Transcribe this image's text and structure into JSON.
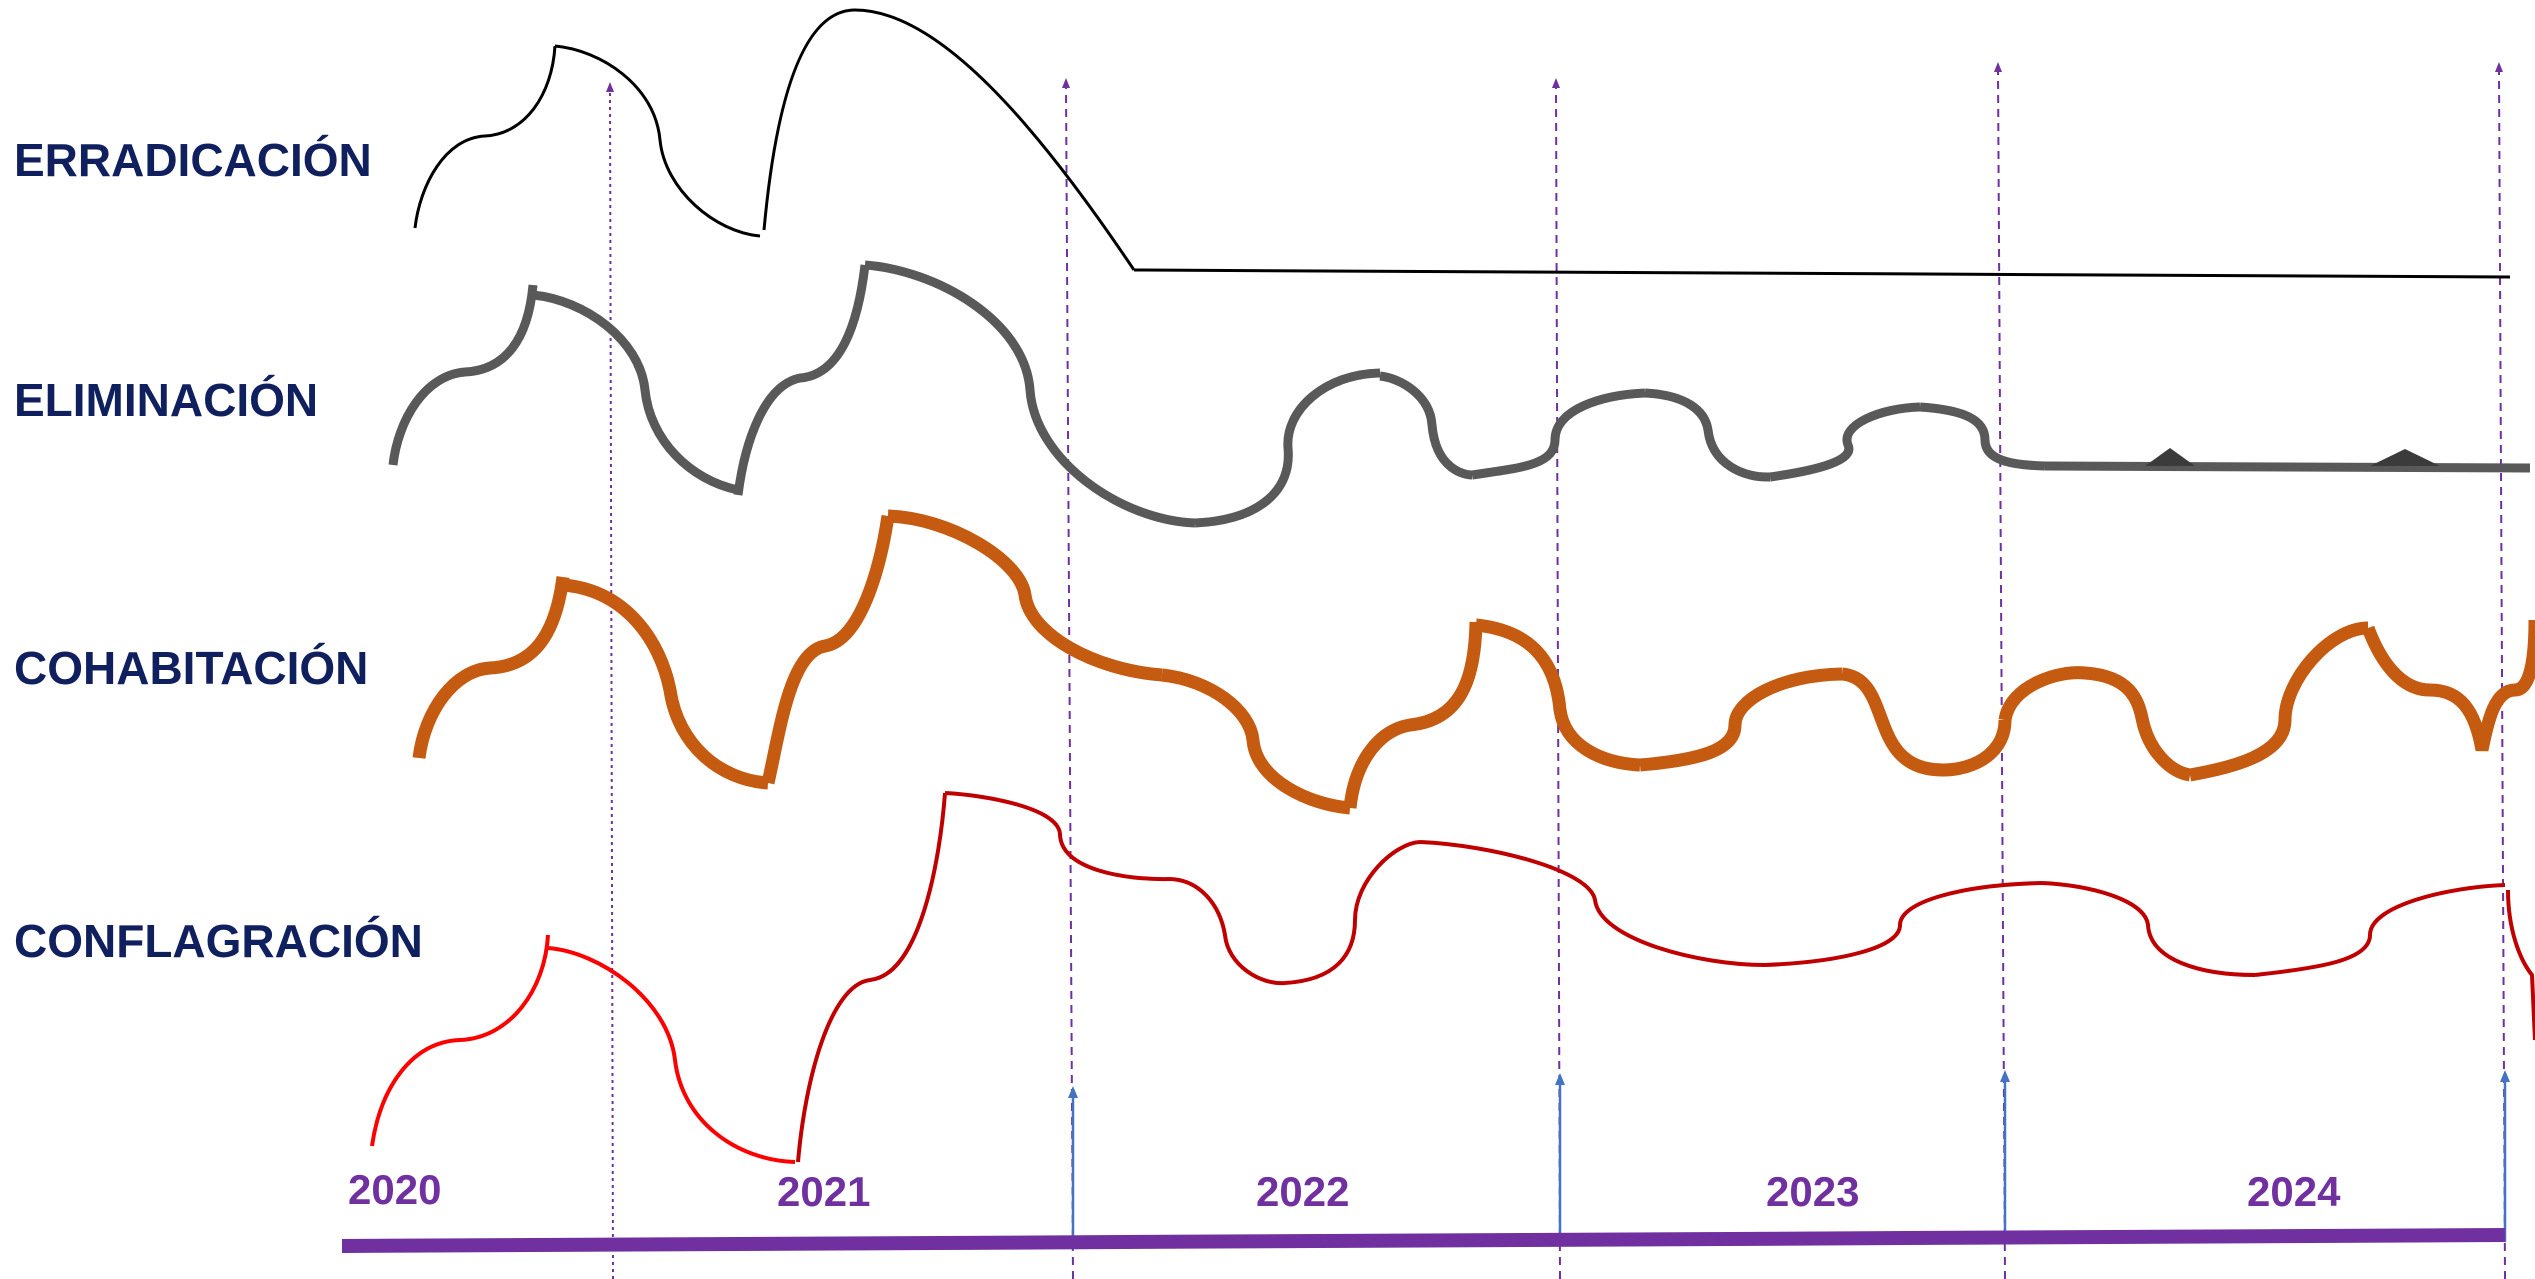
{
  "rows": [
    {
      "key": "erradicacion",
      "label": "ERRADICACIÓN",
      "color": "#000000"
    },
    {
      "key": "eliminacion",
      "label": "ELIMINACIÓN",
      "color": "#595959"
    },
    {
      "key": "cohabitacion",
      "label": "COHABITACIÓN",
      "color": "#c55a11"
    },
    {
      "key": "conflagracion",
      "label": "CONFLAGRACIÓN",
      "color": "#c00000"
    }
  ],
  "years": [
    "2020",
    "2021",
    "2022",
    "2023",
    "2024"
  ],
  "colors": {
    "label_text": "#10205e",
    "timeline": "#7030a0",
    "divider_purple": "#7030a0",
    "arrow_blue": "#4472c4",
    "conflagracion_start": "#ff0000"
  }
}
